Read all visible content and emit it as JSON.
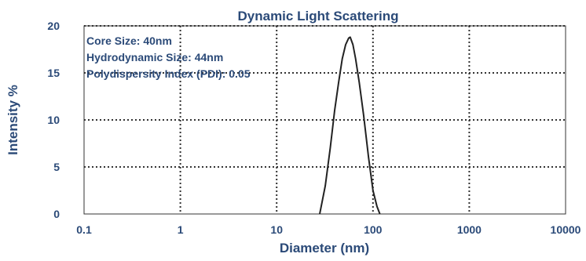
{
  "chart_data": {
    "type": "line",
    "title": "Dynamic Light Scattering",
    "xlabel": "Diameter (nm)",
    "ylabel": "Intensity %",
    "x_scale": "log",
    "xlim": [
      0.1,
      10000
    ],
    "ylim": [
      0,
      20
    ],
    "x_ticks": [
      "0.1",
      "1",
      "10",
      "100",
      "1000",
      "10000"
    ],
    "y_ticks": [
      "0",
      "5",
      "10",
      "15",
      "20"
    ],
    "grid": true,
    "annotations": [
      "Core Size: 40nm",
      "Hydrodynamic Size: 44nm",
      "Polydispersity Index (PDI): 0.05"
    ],
    "series": [
      {
        "x": [
          28,
          32,
          36,
          40,
          44,
          48,
          52,
          56,
          58,
          62,
          66,
          72,
          80,
          90,
          100,
          110,
          118
        ],
        "y": [
          0,
          3,
          7,
          11,
          14,
          16.5,
          18,
          18.7,
          18.8,
          18,
          16.5,
          14,
          10.5,
          6,
          2.5,
          0.8,
          0
        ]
      }
    ],
    "colors": {
      "text": "#2b4a78",
      "line": "#222222",
      "grid": "#333333"
    }
  }
}
